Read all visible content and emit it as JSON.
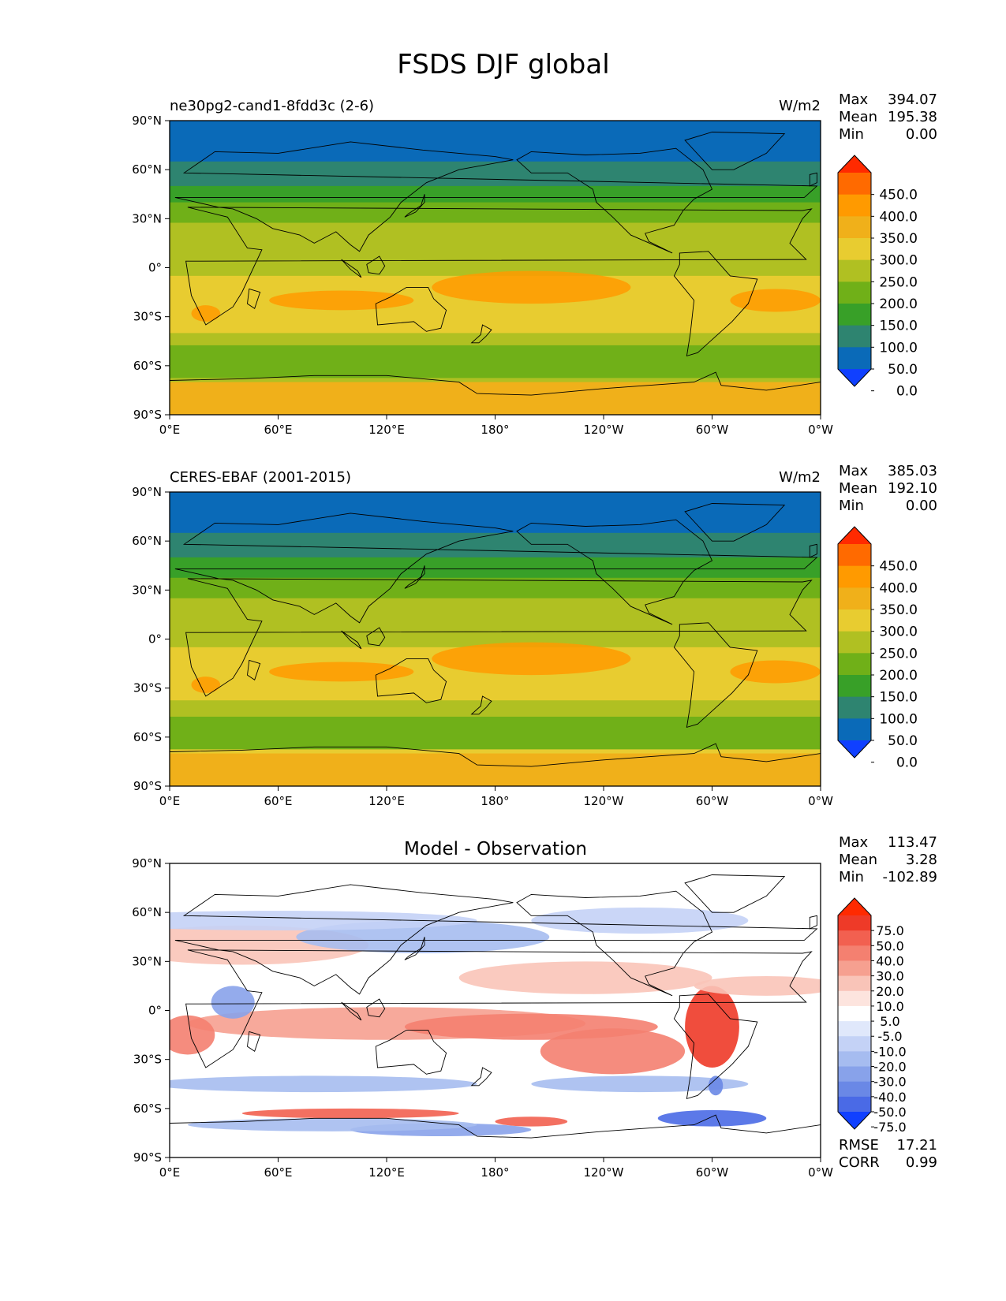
{
  "figure_title": "FSDS DJF global",
  "lat_ticks": [
    "90°N",
    "60°N",
    "30°N",
    "0°",
    "30°S",
    "60°S",
    "90°S"
  ],
  "lon_ticks": [
    "0°E",
    "60°E",
    "120°E",
    "180°",
    "120°W",
    "60°W",
    "0°W"
  ],
  "chart_data": [
    {
      "type": "heatmap",
      "panel": "model",
      "title_left": "ne30pg2-cand1-8fdd3c (2-6)",
      "title_right": "W/m2",
      "units": "W/m2",
      "stats": {
        "max_label": "Max",
        "max": "394.07",
        "mean_label": "Mean",
        "mean": "195.38",
        "min_label": "Min",
        "min": "0.00"
      },
      "xlim": [
        0,
        360
      ],
      "ylim": [
        -90,
        90
      ],
      "colorbar": {
        "labels": [
          "450.0",
          "400.0",
          "350.0",
          "300.0",
          "250.0",
          "200.0",
          "150.0",
          "100.0",
          "50.0",
          "0.0"
        ],
        "colors": [
          "#ff2a00",
          "#ff6a00",
          "#ff9a00",
          "#f0b01a",
          "#e8cc30",
          "#b0c022",
          "#70b018",
          "#38a028",
          "#2e8470",
          "#0a6ab8",
          "#1040ff"
        ]
      },
      "zonal_profile": {
        "lat": [
          90,
          85,
          75,
          60,
          48,
          38,
          25,
          10,
          0,
          -10,
          -25,
          -40,
          -50,
          -58,
          -66,
          -72,
          -80,
          -90
        ],
        "value": [
          25,
          30,
          35,
          60,
          110,
          155,
          210,
          240,
          220,
          270,
          290,
          250,
          170,
          150,
          180,
          320,
          340,
          340
        ]
      }
    },
    {
      "type": "heatmap",
      "panel": "observation",
      "title_left": "CERES-EBAF (2001-2015)",
      "title_right": "W/m2",
      "units": "W/m2",
      "stats": {
        "max_label": "Max",
        "max": "385.03",
        "mean_label": "Mean",
        "mean": "192.10",
        "min_label": "Min",
        "min": "0.00"
      },
      "xlim": [
        0,
        360
      ],
      "ylim": [
        -90,
        90
      ],
      "colorbar": {
        "labels": [
          "450.0",
          "400.0",
          "350.0",
          "300.0",
          "250.0",
          "200.0",
          "150.0",
          "100.0",
          "50.0",
          "0.0"
        ],
        "colors": [
          "#ff2a00",
          "#ff6a00",
          "#ff9a00",
          "#f0b01a",
          "#e8cc30",
          "#b0c022",
          "#70b018",
          "#38a028",
          "#2e8470",
          "#0a6ab8",
          "#1040ff"
        ]
      },
      "zonal_profile": {
        "lat": [
          90,
          85,
          75,
          60,
          48,
          38,
          25,
          10,
          0,
          -10,
          -25,
          -40,
          -50,
          -58,
          -66,
          -72,
          -80,
          -90
        ],
        "value": [
          30,
          30,
          35,
          55,
          105,
          150,
          205,
          235,
          225,
          265,
          285,
          245,
          175,
          150,
          185,
          330,
          345,
          345
        ]
      }
    },
    {
      "type": "heatmap",
      "panel": "difference",
      "title_center": "Model - Observation",
      "stats": {
        "max_label": "Max",
        "max": "113.47",
        "mean_label": "Mean",
        "mean": "3.28",
        "min_label": "Min",
        "min": "-102.89"
      },
      "metrics": {
        "rmse_label": "RMSE",
        "rmse": "17.21",
        "corr_label": "CORR",
        "corr": "0.99"
      },
      "xlim": [
        0,
        360
      ],
      "ylim": [
        -90,
        90
      ],
      "colorbar": {
        "labels": [
          "75.0",
          "50.0",
          "40.0",
          "30.0",
          "20.0",
          "10.0",
          "5.0",
          "-5.0",
          "-10.0",
          "-20.0",
          "-30.0",
          "-40.0",
          "-50.0",
          "-75.0"
        ],
        "colors": [
          "#ff2a00",
          "#ee3a28",
          "#f26050",
          "#f48070",
          "#f6a090",
          "#f9c4b8",
          "#fde4de",
          "#ffffff",
          "#e0e8fb",
          "#c4d2f6",
          "#a6bcf0",
          "#88a2ea",
          "#6a88e6",
          "#4a6ae6",
          "#1040ff"
        ]
      }
    }
  ]
}
